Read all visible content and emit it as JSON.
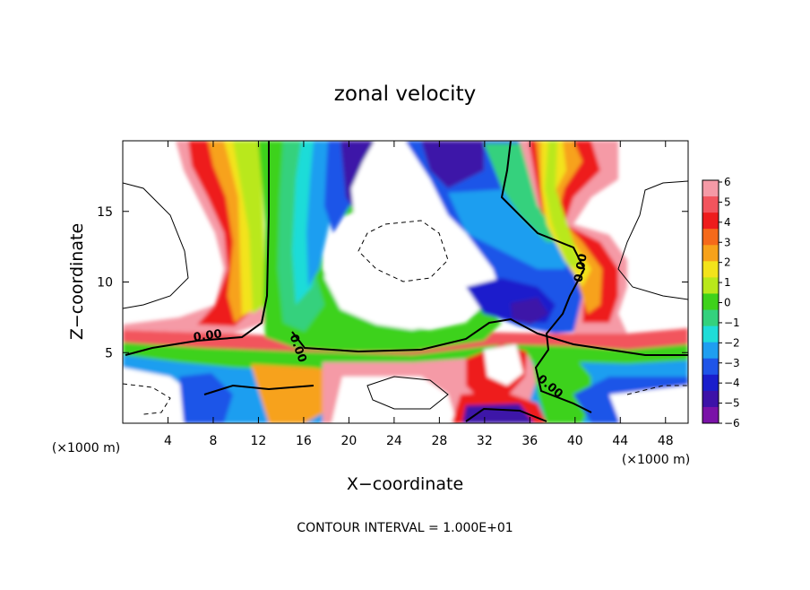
{
  "chart_data": {
    "type": "heatmap",
    "title": "zonal velocity",
    "xlabel": "X−coordinate",
    "ylabel": "Z−coordinate",
    "x_units": "(×1000 m)",
    "y_units": "(×1000 m)",
    "xlim": [
      0,
      50
    ],
    "ylim": [
      0,
      20
    ],
    "x_ticks": [
      4,
      8,
      12,
      16,
      20,
      24,
      28,
      32,
      36,
      40,
      44,
      48
    ],
    "y_ticks": [
      5,
      10,
      15
    ],
    "colorbar": {
      "levels": [
        6,
        5,
        4,
        3,
        2,
        1,
        0,
        -1,
        -2,
        -3,
        -4,
        -5,
        -6
      ],
      "labels": [
        "6",
        "5",
        "4",
        "3",
        "2",
        "1",
        "0",
        "−1",
        "−2",
        "−3",
        "−4",
        "−5",
        "−6"
      ]
    },
    "contour_labels": [
      {
        "text": "0.00",
        "x": 7.5,
        "y": 6.2
      },
      {
        "text": "0.00",
        "x": 15.5,
        "y": 5.3
      },
      {
        "text": "0.00",
        "x": 40.5,
        "y": 11.0
      },
      {
        "text": "0.00",
        "x": 37.8,
        "y": 2.6
      }
    ],
    "footer": "CONTOUR INTERVAL = 1.000E+01"
  },
  "colors": {
    "cb": [
      "#f59aa6",
      "#f2545d",
      "#ee1c1c",
      "#f56a1b",
      "#f7a21b",
      "#f3e31b",
      "#b9e81b",
      "#3ed21b",
      "#34d17d",
      "#1fdcd8",
      "#1f9ef0",
      "#1f55e8",
      "#1a1ecc",
      "#3d12a8",
      "#7a12a8"
    ]
  }
}
